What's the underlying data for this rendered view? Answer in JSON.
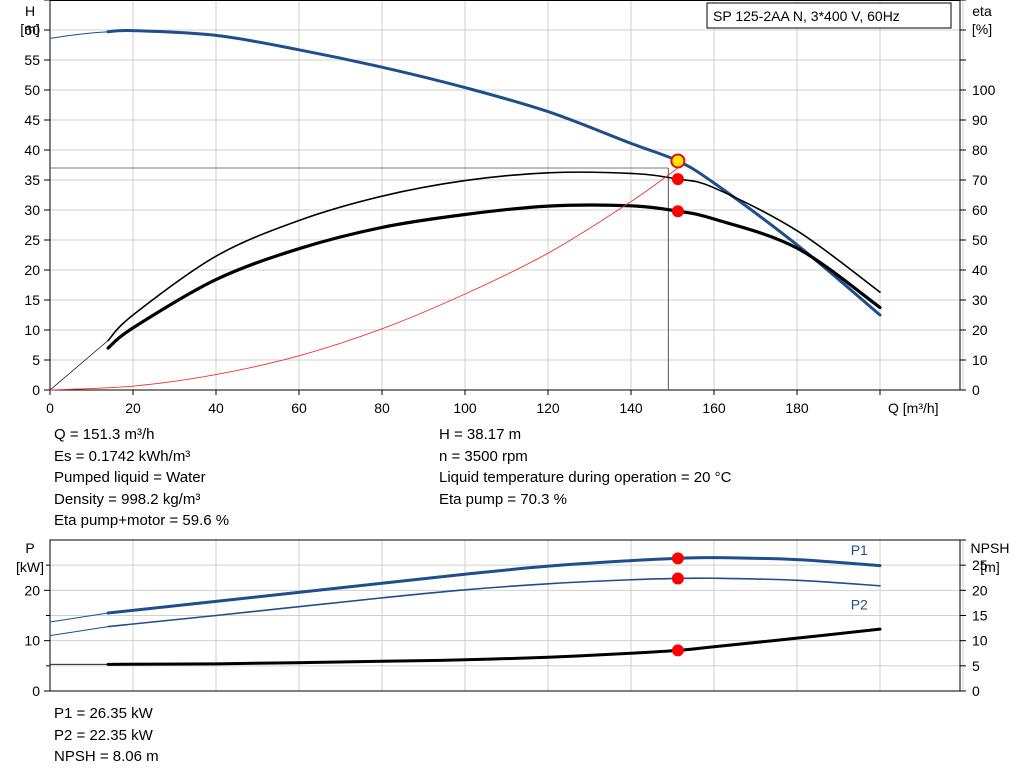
{
  "chart_data": [
    {
      "type": "line",
      "title": "SP 125-2AA N, 3*400 V, 60Hz",
      "xlabel": "Q [m³/h]",
      "ylabel_left": [
        "H",
        "[m]"
      ],
      "ylabel_right": [
        "eta",
        "[%]"
      ],
      "xlim": [
        0,
        200
      ],
      "ylim_left": [
        0,
        65
      ],
      "ylim_right": [
        0,
        130
      ],
      "x_ticks": [
        0,
        20,
        40,
        60,
        80,
        100,
        120,
        140,
        160,
        180
      ],
      "y_ticks_left": [
        0,
        5,
        10,
        15,
        20,
        25,
        30,
        35,
        40,
        45,
        50,
        55,
        60
      ],
      "y_ticks_right": [
        0,
        10,
        20,
        30,
        40,
        50,
        60,
        70,
        80,
        90,
        100
      ],
      "grid": true,
      "series": [
        {
          "axis": "left",
          "color": "#1f4e8c",
          "width": 3,
          "x": [
            14,
            20,
            40,
            60,
            80,
            100,
            120,
            140,
            151.3,
            160,
            180,
            200
          ],
          "y": [
            59.7,
            59.9,
            59.1,
            56.7,
            53.8,
            50.4,
            46.4,
            41.1,
            38.17,
            34.5,
            24.2,
            12.5
          ]
        },
        {
          "axis": "left",
          "color": "#1f4e8c",
          "width": 1,
          "x": [
            0,
            5,
            10,
            14
          ],
          "y": [
            58.6,
            59.1,
            59.5,
            59.7
          ]
        },
        {
          "axis": "right",
          "color": "#000000",
          "width": 1.6,
          "x": [
            14,
            20,
            40,
            60,
            80,
            100,
            120,
            140,
            151.3,
            160,
            180,
            200
          ],
          "y": [
            16.5,
            25,
            44.6,
            56.5,
            64.6,
            69.8,
            72.4,
            72.2,
            70.3,
            67.4,
            53.1,
            32.6
          ]
        },
        {
          "axis": "right",
          "color": "#000000",
          "width": 3.2,
          "x": [
            14,
            20,
            40,
            60,
            80,
            100,
            120,
            140,
            151.3,
            160,
            180,
            200
          ],
          "y": [
            14,
            20.7,
            36.8,
            47.1,
            54.2,
            58.5,
            61.3,
            61.4,
            59.6,
            57,
            47.3,
            27.5
          ]
        },
        {
          "axis": "right",
          "color": "#000000",
          "width": 0.7,
          "x": [
            0,
            14
          ],
          "y": [
            0,
            16.5
          ]
        },
        {
          "axis": "left",
          "color": "#ee3333",
          "width": 0.9,
          "x": [
            0,
            20,
            40,
            60,
            80,
            100,
            120,
            140,
            151.3
          ],
          "y": [
            0,
            0.64,
            2.58,
            5.7,
            10.2,
            16.0,
            22.8,
            31.4,
            37
          ]
        }
      ],
      "duty_point": {
        "x": 151.3,
        "y": 38.17
      },
      "markers": [
        {
          "axis": "right",
          "x": 151.3,
          "y": 70.3
        },
        {
          "axis": "right",
          "x": 151.3,
          "y": 59.6
        }
      ],
      "reference_lines": {
        "h_level": 37,
        "q_level": 149
      }
    },
    {
      "type": "line",
      "ylabel_left": [
        "P",
        "[kW]"
      ],
      "ylabel_right": [
        "NPSH",
        "[m]"
      ],
      "xlim": [
        0,
        200
      ],
      "ylim_left": [
        0,
        30
      ],
      "ylim_right": [
        0,
        30
      ],
      "y_ticks_left": [
        0,
        10,
        20
      ],
      "y_ticks_right": [
        0,
        5,
        10,
        15,
        20,
        25
      ],
      "grid": true,
      "series": [
        {
          "name": "P1",
          "axis": "left",
          "color": "#1f4e8c",
          "width": 3,
          "x": [
            14,
            40,
            80,
            100,
            120,
            140,
            151.3,
            160,
            180,
            200
          ],
          "y": [
            15.5,
            17.8,
            21.4,
            23.2,
            24.8,
            25.9,
            26.35,
            26.5,
            26.1,
            24.9
          ]
        },
        {
          "axis": "left",
          "color": "#1f4e8c",
          "width": 1,
          "x": [
            0,
            14
          ],
          "y": [
            13.7,
            15.5
          ]
        },
        {
          "name": "P2",
          "axis": "left",
          "color": "#1f4e8c",
          "width": 1.6,
          "x": [
            14,
            40,
            80,
            100,
            120,
            140,
            151.3,
            160,
            180,
            200
          ],
          "y": [
            12.8,
            15,
            18.5,
            20.1,
            21.3,
            22.1,
            22.35,
            22.4,
            22,
            20.9
          ]
        },
        {
          "axis": "left",
          "color": "#1f4e8c",
          "width": 1,
          "x": [
            0,
            14
          ],
          "y": [
            11,
            12.8
          ]
        },
        {
          "name": "NPSH",
          "axis": "right",
          "color": "#000000",
          "width": 3,
          "x": [
            14,
            40,
            80,
            100,
            120,
            140,
            151.3,
            160,
            180,
            200
          ],
          "y": [
            5.3,
            5.4,
            5.9,
            6.2,
            6.7,
            7.5,
            8.06,
            8.8,
            10.5,
            12.3
          ]
        },
        {
          "axis": "right",
          "color": "#000000",
          "width": 0.8,
          "x": [
            0,
            14
          ],
          "y": [
            5.3,
            5.3
          ]
        }
      ],
      "series_labels": [
        {
          "text": "P1",
          "x": 195,
          "y": 28
        },
        {
          "text": "P2",
          "x": 195,
          "y": 17.2
        }
      ],
      "markers": [
        {
          "axis": "left",
          "x": 151.3,
          "y": 26.35
        },
        {
          "axis": "left",
          "x": 151.3,
          "y": 22.35
        },
        {
          "axis": "right",
          "x": 151.3,
          "y": 8.06
        }
      ]
    }
  ],
  "info_top_left": [
    "Q = 151.3 m³/h",
    "Es = 0.1742 kWh/m³",
    "Pumped liquid = Water",
    "Density = 998.2 kg/m³",
    "Eta pump+motor = 59.6 %"
  ],
  "info_top_right": [
    "H = 38.17 m",
    "n = 3500 rpm",
    "Liquid temperature during operation = 20 °C",
    "Eta pump = 70.3 %"
  ],
  "info_bottom": [
    "P1 = 26.35 kW",
    "P2 = 22.35 kW",
    "NPSH = 8.06 m"
  ]
}
